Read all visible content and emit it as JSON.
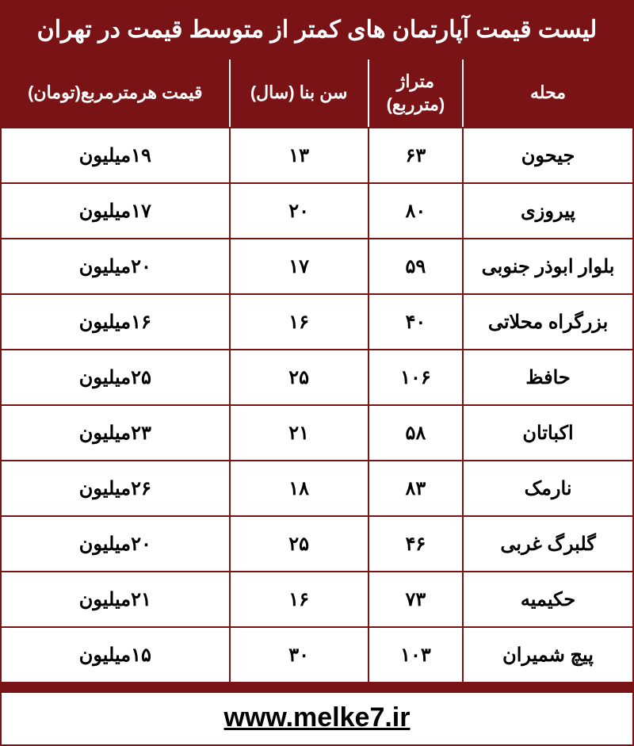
{
  "title": "لیست قیمت آپارتمان های کمتر از متوسط قیمت در تهران",
  "columns": {
    "neighborhood": "محله",
    "area": "متراژ (مترربع)",
    "age": "سن بنا (سال)",
    "price": "قیمت هرمترمربع(تومان)"
  },
  "rows": [
    {
      "neighborhood": "جیحون",
      "area": "۶۳",
      "age": "۱۳",
      "price": "۱۹میلیون"
    },
    {
      "neighborhood": "پیروزی",
      "area": "۸۰",
      "age": "۲۰",
      "price": "۱۷میلیون"
    },
    {
      "neighborhood": "بلوار ابوذر جنوبی",
      "area": "۵۹",
      "age": "۱۷",
      "price": "۲۰میلیون"
    },
    {
      "neighborhood": "بزرگراه محلاتی",
      "area": "۴۰",
      "age": "۱۶",
      "price": "۱۶میلیون"
    },
    {
      "neighborhood": "حافظ",
      "area": "۱۰۶",
      "age": "۲۵",
      "price": "۲۵میلیون"
    },
    {
      "neighborhood": "اکباتان",
      "area": "۵۸",
      "age": "۲۱",
      "price": "۲۳میلیون"
    },
    {
      "neighborhood": "نارمک",
      "area": "۸۳",
      "age": "۱۸",
      "price": "۲۶میلیون"
    },
    {
      "neighborhood": "گلبرگ غربی",
      "area": "۴۶",
      "age": "۲۵",
      "price": "۲۰میلیون"
    },
    {
      "neighborhood": "حکیمیه",
      "area": "۷۳",
      "age": "۱۶",
      "price": "۲۱میلیون"
    },
    {
      "neighborhood": "پیچ شمیران",
      "area": "۱۰۳",
      "age": "۳۰",
      "price": "۱۵میلیون"
    }
  ],
  "url": "www.melke7.ir",
  "colors": {
    "primary": "#7a1316",
    "text_light": "#ffffff",
    "text_dark": "#000000",
    "background": "#ffffff"
  }
}
